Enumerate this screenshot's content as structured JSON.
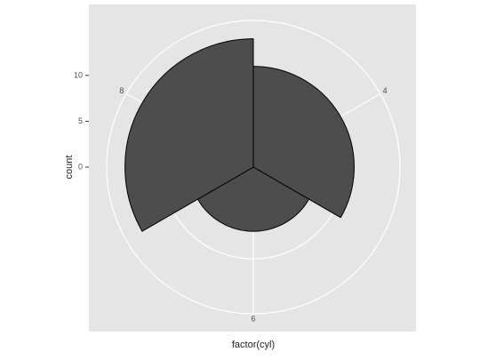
{
  "chart_data": {
    "type": "polar-bar",
    "xlabel": "factor(cyl)",
    "ylabel": "count",
    "categories": [
      "4",
      "6",
      "8"
    ],
    "values": [
      11,
      7,
      14
    ],
    "color": "#4d4d4d",
    "ylim": [
      0,
      16
    ],
    "yticks": [
      0,
      5,
      10
    ],
    "grid": true
  }
}
